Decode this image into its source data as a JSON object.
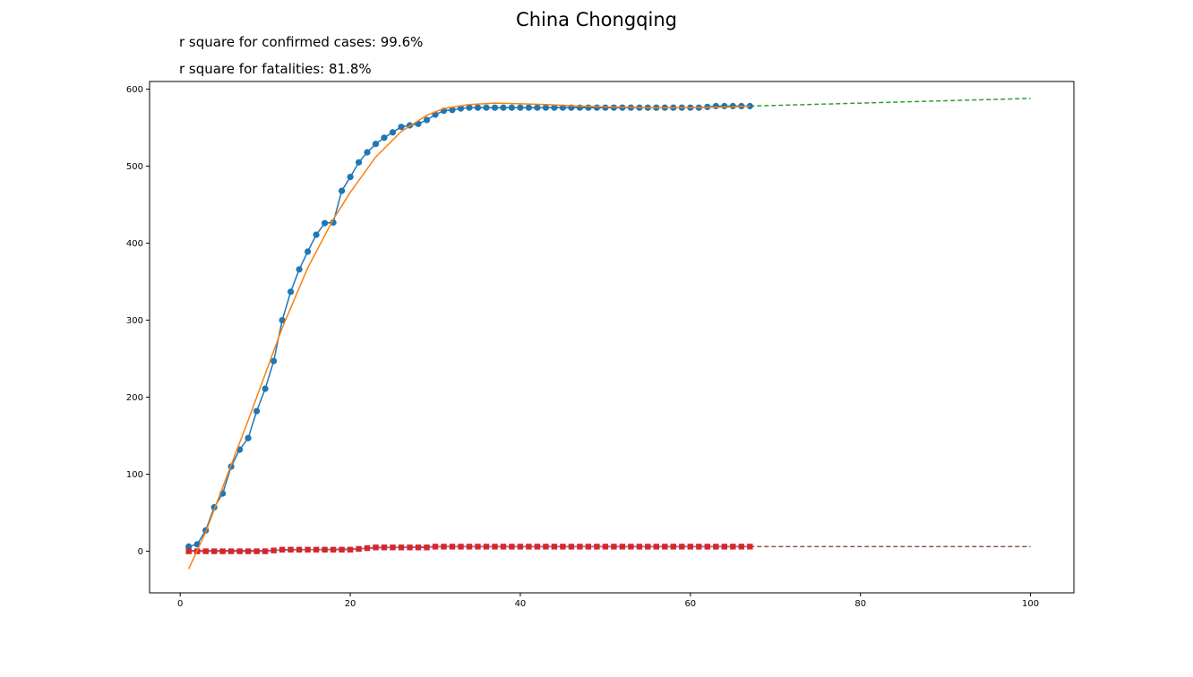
{
  "title": "China Chongqing",
  "annotations": {
    "confirmed_r2": "r square for confirmed cases: 99.6%",
    "fatalities_r2": "r square for fatalities: 81.8%"
  },
  "colors": {
    "confirmed": "#1f77b4",
    "confirmed_fit": "#ff7f0e",
    "confirmed_forecast": "#2ca02c",
    "fatalities": "#d62728",
    "fatalities_fit": "#9467bd",
    "fatalities_forecast": "#8c564b"
  },
  "chart_data": {
    "type": "line",
    "title": "China Chongqing",
    "xlabel": "",
    "ylabel": "",
    "xlim": [
      -3.6,
      105.1
    ],
    "ylim": [
      -54,
      610
    ],
    "xticks": [
      0,
      20,
      40,
      60,
      80,
      100
    ],
    "yticks": [
      0,
      100,
      200,
      300,
      400,
      500,
      600
    ],
    "grid": false,
    "confirmed": {
      "x_start": 1,
      "values": [
        6,
        9,
        27,
        57,
        75,
        110,
        132,
        147,
        182,
        211,
        247,
        300,
        337,
        366,
        389,
        411,
        426,
        427,
        468,
        486,
        505,
        518,
        529,
        537,
        544,
        551,
        553,
        555,
        560,
        567,
        572,
        573,
        575,
        576,
        576,
        576,
        576,
        576,
        576,
        576,
        576,
        576,
        576,
        576,
        576,
        576,
        576,
        576,
        576,
        576,
        576,
        576,
        576,
        576,
        576,
        576,
        576,
        576,
        576,
        576,
        576,
        577,
        578,
        578,
        578,
        578,
        578
      ]
    },
    "confirmed_fit": {
      "x": [
        1,
        3,
        5,
        8,
        10,
        12,
        15,
        18,
        20,
        23,
        26,
        29,
        31,
        34,
        37,
        40,
        43,
        47,
        50,
        55,
        60,
        65,
        67
      ],
      "y": [
        -23,
        25,
        83,
        170,
        230,
        290,
        368,
        431,
        466,
        512,
        545,
        566,
        575,
        580,
        582,
        581,
        580,
        578,
        577,
        576,
        576,
        577,
        578
      ]
    },
    "confirmed_forecast": {
      "x": [
        67,
        100
      ],
      "y": [
        578,
        588
      ]
    },
    "fatalities": {
      "x_start": 1,
      "values": [
        0,
        0,
        0,
        0,
        0,
        0,
        0,
        0,
        0,
        0,
        1,
        2,
        2,
        2,
        2,
        2,
        2,
        2,
        2,
        2,
        3,
        4,
        5,
        5,
        5,
        5,
        5,
        5,
        5,
        6,
        6,
        6,
        6,
        6,
        6,
        6,
        6,
        6,
        6,
        6,
        6,
        6,
        6,
        6,
        6,
        6,
        6,
        6,
        6,
        6,
        6,
        6,
        6,
        6,
        6,
        6,
        6,
        6,
        6,
        6,
        6,
        6,
        6,
        6,
        6,
        6,
        6
      ]
    },
    "fatalities_fit": {
      "x": [
        1,
        5,
        10,
        15,
        20,
        25,
        30,
        40,
        50,
        60,
        67
      ],
      "y": [
        1,
        1,
        1,
        2,
        3,
        5,
        6,
        6,
        6,
        6,
        6
      ]
    },
    "fatalities_forecast": {
      "x": [
        67,
        100
      ],
      "y": [
        6,
        6
      ]
    }
  }
}
